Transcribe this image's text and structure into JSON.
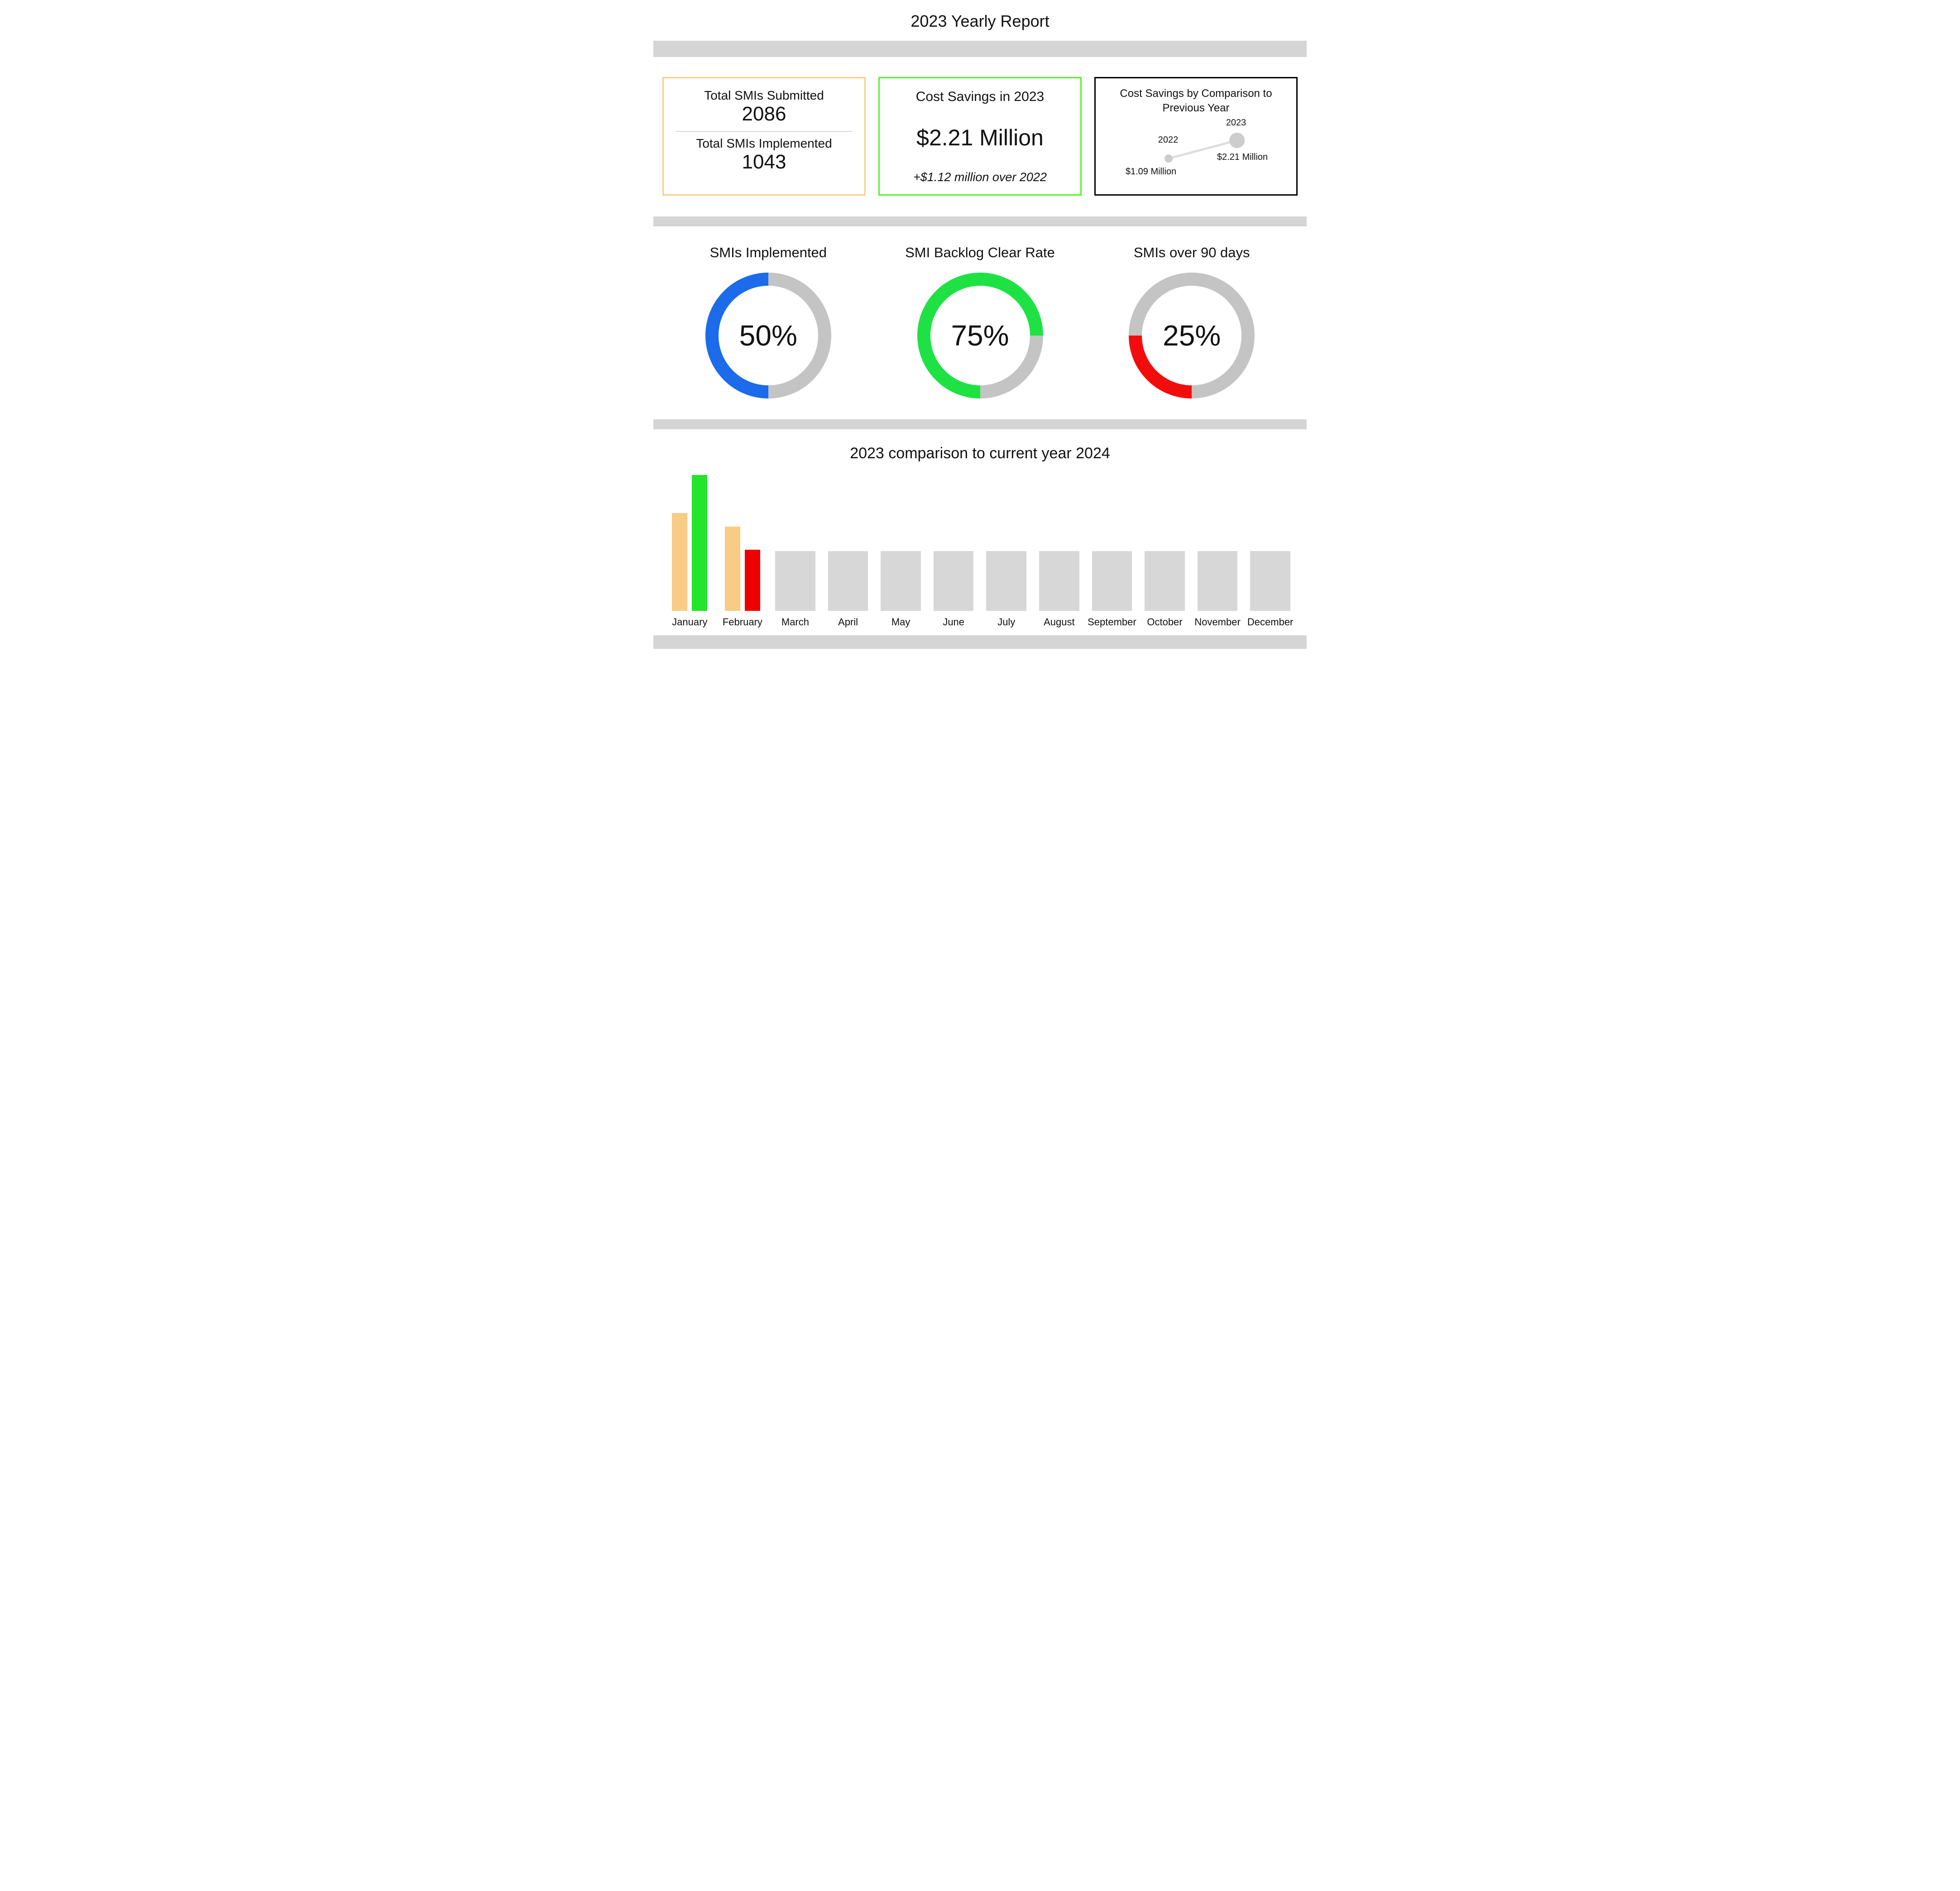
{
  "page": {
    "title": "2023 Yearly Report"
  },
  "cards": {
    "smis": {
      "submitted_label": "Total SMIs Submitted",
      "submitted_value": "2086",
      "implemented_label": "Total SMIs Implemented",
      "implemented_value": "1043",
      "border_color": "#F9CD87"
    },
    "savings": {
      "title": "Cost Savings in 2023",
      "value": "$2.21 Million",
      "delta": "+$1.12 million over 2022",
      "border_color": "#55F226"
    },
    "comparison": {
      "title": "Cost Savings by Comparison to Previous Year",
      "border_color": "#000000"
    }
  },
  "chart_data": [
    {
      "type": "line",
      "title": "Cost Savings by Comparison to Previous Year",
      "x": [
        "2022",
        "2023"
      ],
      "values": [
        1.09,
        2.21
      ],
      "unit": "million USD",
      "point_labels": [
        "$1.09 Million",
        "$2.21 Million"
      ],
      "point_color": "#CDCDCD",
      "line_color": "#DEDEDE"
    },
    {
      "type": "pie",
      "title": "SMIs Implemented",
      "center_text": "50%",
      "percent": 50,
      "values": [
        50,
        50
      ],
      "labels": [
        "filled",
        "remaining"
      ],
      "color": "#1B6BEB",
      "track_color": "#C4C4C4"
    },
    {
      "type": "pie",
      "title": "SMI Backlog Clear Rate",
      "center_text": "75%",
      "percent": 75,
      "values": [
        75,
        25
      ],
      "labels": [
        "filled",
        "remaining"
      ],
      "color": "#1EE244",
      "track_color": "#C4C4C4"
    },
    {
      "type": "pie",
      "title": "SMIs over 90 days",
      "center_text": "25%",
      "percent": 25,
      "values": [
        25,
        75
      ],
      "labels": [
        "filled",
        "remaining"
      ],
      "color": "#F20D0D",
      "track_color": "#C4C4C4"
    },
    {
      "type": "bar",
      "title": "2023 comparison to current year 2024",
      "categories": [
        "January",
        "February",
        "March",
        "April",
        "May",
        "June",
        "July",
        "August",
        "September",
        "October",
        "November",
        "December"
      ],
      "series": [
        {
          "name": "2023",
          "color": "#F8CC84",
          "values": [
            72,
            62,
            null,
            null,
            null,
            null,
            null,
            null,
            null,
            null,
            null,
            null
          ]
        },
        {
          "name": "2024",
          "values": [
            100,
            45,
            null,
            null,
            null,
            null,
            null,
            null,
            null,
            null,
            null,
            null
          ]
        }
      ],
      "ylim": [
        0,
        100
      ],
      "placeholder": {
        "color": "#D7D7D7",
        "value": 44
      },
      "months": [
        {
          "label": "January",
          "bars": [
            {
              "series": "2023",
              "color": "#F8CC84",
              "pct": 72
            },
            {
              "series": "2024",
              "color": "#24E42B",
              "pct": 100
            }
          ]
        },
        {
          "label": "February",
          "bars": [
            {
              "series": "2023",
              "color": "#F8CC84",
              "pct": 62
            },
            {
              "series": "2024",
              "color": "#EE0000",
              "pct": 45
            }
          ]
        },
        {
          "label": "March",
          "bars": [
            {
              "series": "no-data",
              "color": "#D7D7D7",
              "pct": 44,
              "wide": true
            }
          ]
        },
        {
          "label": "April",
          "bars": [
            {
              "series": "no-data",
              "color": "#D7D7D7",
              "pct": 44,
              "wide": true
            }
          ]
        },
        {
          "label": "May",
          "bars": [
            {
              "series": "no-data",
              "color": "#D7D7D7",
              "pct": 44,
              "wide": true
            }
          ]
        },
        {
          "label": "June",
          "bars": [
            {
              "series": "no-data",
              "color": "#D7D7D7",
              "pct": 44,
              "wide": true
            }
          ]
        },
        {
          "label": "July",
          "bars": [
            {
              "series": "no-data",
              "color": "#D7D7D7",
              "pct": 44,
              "wide": true
            }
          ]
        },
        {
          "label": "August",
          "bars": [
            {
              "series": "no-data",
              "color": "#D7D7D7",
              "pct": 44,
              "wide": true
            }
          ]
        },
        {
          "label": "September",
          "bars": [
            {
              "series": "no-data",
              "color": "#D7D7D7",
              "pct": 44,
              "wide": true
            }
          ]
        },
        {
          "label": "October",
          "bars": [
            {
              "series": "no-data",
              "color": "#D7D7D7",
              "pct": 44,
              "wide": true
            }
          ]
        },
        {
          "label": "November",
          "bars": [
            {
              "series": "no-data",
              "color": "#D7D7D7",
              "pct": 44,
              "wide": true
            }
          ]
        },
        {
          "label": "December",
          "bars": [
            {
              "series": "no-data",
              "color": "#D7D7D7",
              "pct": 44,
              "wide": true
            }
          ]
        }
      ]
    }
  ]
}
